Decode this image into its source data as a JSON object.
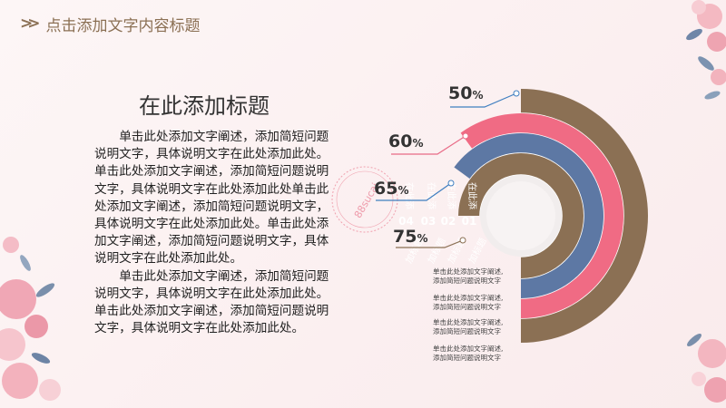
{
  "header": {
    "title": "点击添加文字内容标题"
  },
  "main": {
    "heading": "在此添加标题",
    "paragraphs": [
      "单击此处添加文字阐述，添加简短问题说明文字，具体说明文字在此处添加此处。单击此处添加文字阐述，添加简短问题说明文字，具体说明文字在此处添加此处单击此处添加文字阐述，添加简短问题说明文字，具体说明文字在此处添加此处。单击此处添加文字阐述，添加简短问题说明文字，具体说明文字在此处添加此处。",
      "单击此处添加文字阐述，添加简短问题说明文字，具体说明文字在此处添加此处。单击此处添加文字阐述，添加简短问题说明文字，具体说明文字在此处添加此处。"
    ]
  },
  "watermark": "88sucai",
  "colors": {
    "brown": "#8b7054",
    "pink": "#f06b84",
    "blue": "#5d78a4",
    "line_blue": "#3f7fc0",
    "line_pink": "#e86a86"
  },
  "chart_data": {
    "type": "radial-bar",
    "items": [
      {
        "num": "01",
        "label": "在此添",
        "sub": "加标题",
        "value": 75,
        "value_text": "75",
        "color": "#8b7054"
      },
      {
        "num": "02",
        "label": "在此添",
        "sub": "加标题",
        "value": 65,
        "value_text": "65",
        "color": "#5d78a4"
      },
      {
        "num": "03",
        "label": "在此添",
        "sub": "加标题",
        "value": 60,
        "value_text": "60",
        "color": "#f06b84"
      },
      {
        "num": "04",
        "label": "在此添",
        "sub": "加标题",
        "value": 50,
        "value_text": "50",
        "color": "#8b7054"
      }
    ],
    "unit": "%",
    "notes": [
      [
        "单击此处添加文字阐述,",
        "添加简短问题说明文字"
      ],
      [
        "单击此处添加文字阐述,",
        "添加简短问题说明文字"
      ],
      [
        "单击此处添加文字阐述,",
        "添加简短问题说明文字"
      ],
      [
        "单击此处添加文字阐述,",
        "添加简短问题说明文字"
      ]
    ]
  }
}
